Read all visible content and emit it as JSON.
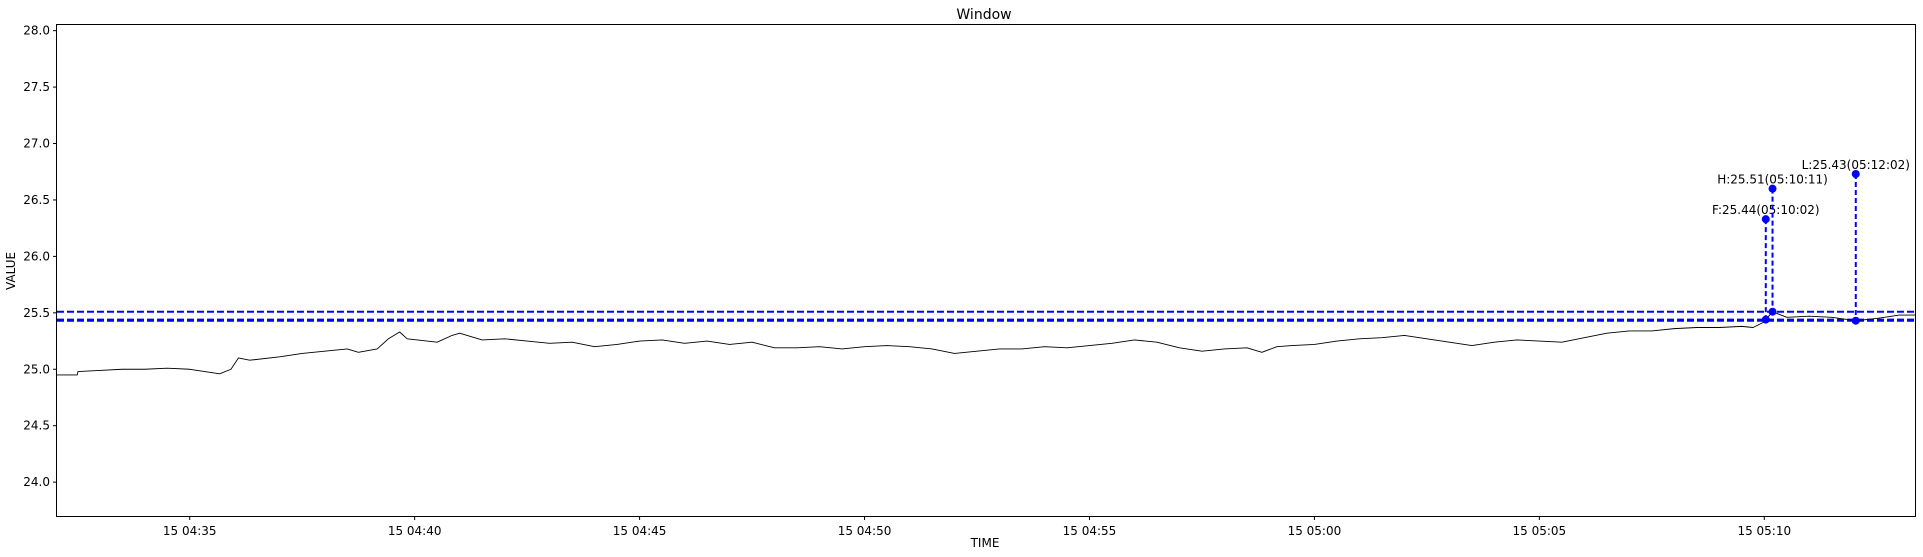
{
  "chart_data": {
    "type": "line",
    "title": "Window",
    "xlabel": "TIME",
    "ylabel": "VALUE",
    "x_range": [
      "15 04:32:03",
      "15 05:13:21"
    ],
    "ylim": [
      23.7,
      28.05
    ],
    "x_ticks": [
      {
        "time": "15 04:35:00",
        "label": "15 04:35"
      },
      {
        "time": "15 04:40:00",
        "label": "15 04:40"
      },
      {
        "time": "15 04:45:00",
        "label": "15 04:45"
      },
      {
        "time": "15 04:50:00",
        "label": "15 04:50"
      },
      {
        "time": "15 04:55:00",
        "label": "15 04:55"
      },
      {
        "time": "15 05:00:00",
        "label": "15 05:00"
      },
      {
        "time": "15 05:05:00",
        "label": "15 05:05"
      },
      {
        "time": "15 05:10:00",
        "label": "15 05:10"
      }
    ],
    "y_ticks": [
      "24.0",
      "24.5",
      "25.0",
      "25.5",
      "26.0",
      "26.5",
      "27.0",
      "27.5",
      "28.0"
    ],
    "grid": false,
    "series": [
      {
        "color": "#000000",
        "points": [
          [
            "15 04:32:03",
            24.95
          ],
          [
            "15 04:32:30",
            24.95
          ],
          [
            "15 04:32:31",
            24.98
          ],
          [
            "15 04:33:00",
            24.99
          ],
          [
            "15 04:33:30",
            25.0
          ],
          [
            "15 04:34:00",
            25.0
          ],
          [
            "15 04:34:30",
            25.01
          ],
          [
            "15 04:35:00",
            25.0
          ],
          [
            "15 04:35:40",
            24.96
          ],
          [
            "15 04:35:55",
            25.0
          ],
          [
            "15 04:36:05",
            25.1
          ],
          [
            "15 04:36:20",
            25.08
          ],
          [
            "15 04:37:00",
            25.11
          ],
          [
            "15 04:37:30",
            25.14
          ],
          [
            "15 04:38:00",
            25.16
          ],
          [
            "15 04:38:30",
            25.18
          ],
          [
            "15 04:38:45",
            25.15
          ],
          [
            "15 04:39:10",
            25.18
          ],
          [
            "15 04:39:25",
            25.27
          ],
          [
            "15 04:39:40",
            25.33
          ],
          [
            "15 04:39:50",
            25.27
          ],
          [
            "15 04:40:30",
            25.24
          ],
          [
            "15 04:40:50",
            25.3
          ],
          [
            "15 04:41:00",
            25.32
          ],
          [
            "15 04:41:30",
            25.26
          ],
          [
            "15 04:42:00",
            25.27
          ],
          [
            "15 04:42:30",
            25.25
          ],
          [
            "15 04:43:00",
            25.23
          ],
          [
            "15 04:43:30",
            25.24
          ],
          [
            "15 04:44:00",
            25.2
          ],
          [
            "15 04:44:30",
            25.22
          ],
          [
            "15 04:45:00",
            25.25
          ],
          [
            "15 04:45:30",
            25.26
          ],
          [
            "15 04:46:00",
            25.23
          ],
          [
            "15 04:46:30",
            25.25
          ],
          [
            "15 04:47:00",
            25.22
          ],
          [
            "15 04:47:30",
            25.24
          ],
          [
            "15 04:48:00",
            25.19
          ],
          [
            "15 04:48:30",
            25.19
          ],
          [
            "15 04:49:00",
            25.2
          ],
          [
            "15 04:49:30",
            25.18
          ],
          [
            "15 04:50:00",
            25.2
          ],
          [
            "15 04:50:30",
            25.21
          ],
          [
            "15 04:51:00",
            25.2
          ],
          [
            "15 04:51:30",
            25.18
          ],
          [
            "15 04:52:00",
            25.14
          ],
          [
            "15 04:52:30",
            25.16
          ],
          [
            "15 04:53:00",
            25.18
          ],
          [
            "15 04:53:30",
            25.18
          ],
          [
            "15 04:54:00",
            25.2
          ],
          [
            "15 04:54:30",
            25.19
          ],
          [
            "15 04:55:00",
            25.21
          ],
          [
            "15 04:55:30",
            25.23
          ],
          [
            "15 04:56:00",
            25.26
          ],
          [
            "15 04:56:30",
            25.24
          ],
          [
            "15 04:57:00",
            25.19
          ],
          [
            "15 04:57:30",
            25.16
          ],
          [
            "15 04:58:00",
            25.18
          ],
          [
            "15 04:58:30",
            25.19
          ],
          [
            "15 04:58:50",
            25.15
          ],
          [
            "15 04:59:10",
            25.2
          ],
          [
            "15 04:59:30",
            25.21
          ],
          [
            "15 05:00:00",
            25.22
          ],
          [
            "15 05:00:30",
            25.25
          ],
          [
            "15 05:01:00",
            25.27
          ],
          [
            "15 05:01:30",
            25.28
          ],
          [
            "15 05:02:00",
            25.3
          ],
          [
            "15 05:02:30",
            25.27
          ],
          [
            "15 05:03:00",
            25.24
          ],
          [
            "15 05:03:30",
            25.21
          ],
          [
            "15 05:04:00",
            25.24
          ],
          [
            "15 05:04:30",
            25.26
          ],
          [
            "15 05:05:00",
            25.25
          ],
          [
            "15 05:05:30",
            25.24
          ],
          [
            "15 05:06:00",
            25.28
          ],
          [
            "15 05:06:30",
            25.32
          ],
          [
            "15 05:07:00",
            25.34
          ],
          [
            "15 05:07:30",
            25.34
          ],
          [
            "15 05:08:00",
            25.36
          ],
          [
            "15 05:08:30",
            25.37
          ],
          [
            "15 05:09:00",
            25.37
          ],
          [
            "15 05:09:30",
            25.38
          ],
          [
            "15 05:09:45",
            25.37
          ],
          [
            "15 05:10:00",
            25.42
          ],
          [
            "15 05:10:02",
            25.44
          ],
          [
            "15 05:10:11",
            25.51
          ],
          [
            "15 05:10:30",
            25.46
          ],
          [
            "15 05:11:00",
            25.47
          ],
          [
            "15 05:11:30",
            25.46
          ],
          [
            "15 05:12:02",
            25.43
          ],
          [
            "15 05:12:30",
            25.45
          ],
          [
            "15 05:13:00",
            25.48
          ],
          [
            "15 05:13:21",
            25.48
          ]
        ]
      }
    ],
    "hlines": [
      {
        "y": 25.51,
        "color": "#0000ff",
        "style": "dashed"
      },
      {
        "y": 25.44,
        "color": "#0000ff",
        "style": "dashed"
      },
      {
        "y": 25.43,
        "color": "#0000ff",
        "style": "dashed"
      }
    ],
    "annotations": [
      {
        "key": "F",
        "label": "F:25.44(05:10:02)",
        "time": "15 05:10:02",
        "value": 25.44,
        "label_y": 26.33,
        "color": "#0000ff"
      },
      {
        "key": "H",
        "label": "H:25.51(05:10:11)",
        "time": "15 05:10:11",
        "value": 25.51,
        "label_y": 26.6,
        "color": "#0000ff"
      },
      {
        "key": "L",
        "label": "L:25.43(05:12:02)",
        "time": "15 05:12:02",
        "value": 25.43,
        "label_y": 26.73,
        "color": "#0000ff"
      }
    ]
  }
}
